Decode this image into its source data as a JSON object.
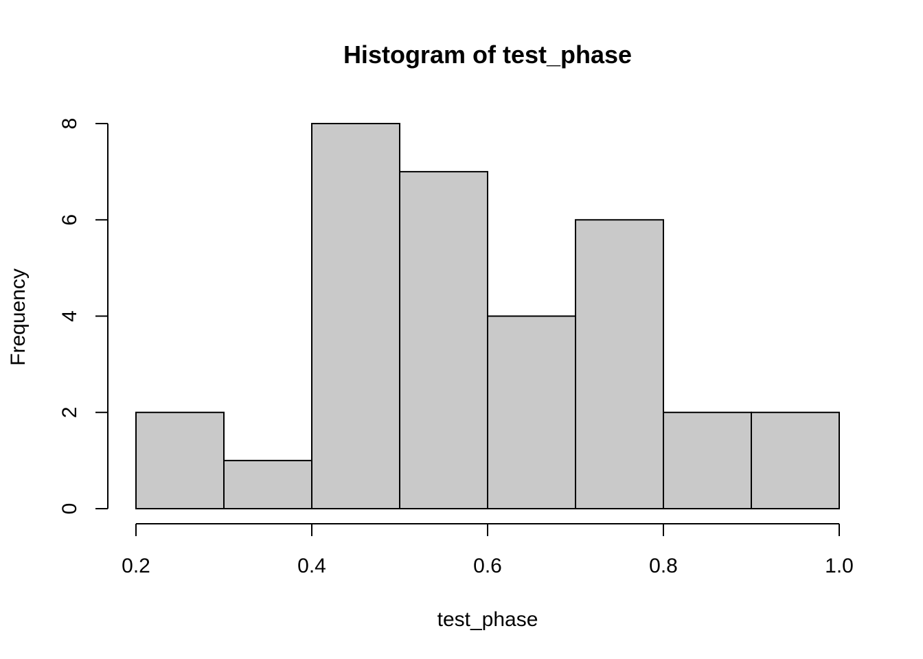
{
  "chart_data": {
    "type": "bar",
    "title": "Histogram of test_phase",
    "xlabel": "test_phase",
    "ylabel": "Frequency",
    "bins": [
      {
        "start": 0.2,
        "end": 0.3,
        "count": 2
      },
      {
        "start": 0.3,
        "end": 0.4,
        "count": 1
      },
      {
        "start": 0.4,
        "end": 0.5,
        "count": 8
      },
      {
        "start": 0.5,
        "end": 0.6,
        "count": 7
      },
      {
        "start": 0.6,
        "end": 0.7,
        "count": 4
      },
      {
        "start": 0.7,
        "end": 0.8,
        "count": 6
      },
      {
        "start": 0.8,
        "end": 0.9,
        "count": 2
      },
      {
        "start": 0.9,
        "end": 1.0,
        "count": 2
      }
    ],
    "xlim": [
      0.2,
      1.0
    ],
    "ylim": [
      0,
      8
    ],
    "x_ticks": [
      "0.2",
      "0.4",
      "0.6",
      "0.8",
      "1.0"
    ],
    "y_ticks": [
      "0",
      "2",
      "4",
      "6",
      "8"
    ],
    "grid": false,
    "bar_color": "#c9c9c9"
  }
}
